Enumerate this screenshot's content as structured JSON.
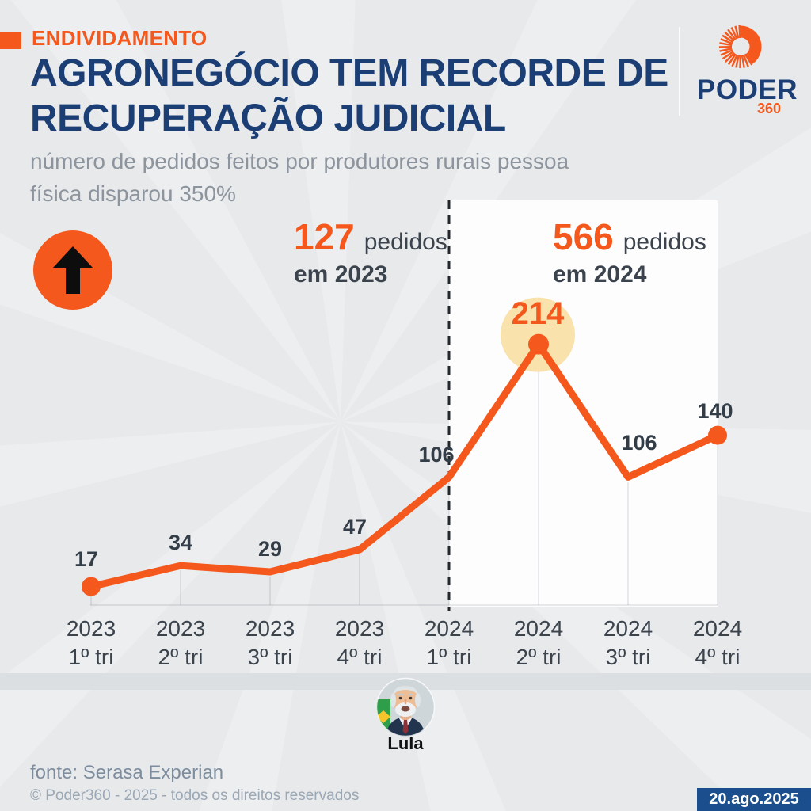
{
  "header": {
    "kicker": "ENDIVIDAMENTO",
    "title_line1": "AGRONEGÓCIO TEM RECORDE DE",
    "title_line2": "RECUPERAÇÃO JUDICIAL",
    "subtitle_line1": "número de pedidos feitos por produtores rurais pessoa",
    "subtitle_line2": "física disparou 350%"
  },
  "brand": {
    "name": "PODER",
    "suffix": "360"
  },
  "notes": {
    "y2023": {
      "value": "127",
      "unit": "pedidos",
      "period": "em 2023"
    },
    "y2024": {
      "value": "566",
      "unit": "pedidos",
      "period": "em 2024"
    }
  },
  "chart_data": {
    "type": "line",
    "title": "AGRONEGÓCIO TEM RECORDE DE RECUPERAÇÃO JUDICIAL",
    "subtitle": "número de pedidos feitos por produtores rurais pessoa física disparou 350%",
    "categories": [
      {
        "year": "2023",
        "quarter": "1º tri"
      },
      {
        "year": "2023",
        "quarter": "2º tri"
      },
      {
        "year": "2023",
        "quarter": "3º tri"
      },
      {
        "year": "2023",
        "quarter": "4º tri"
      },
      {
        "year": "2024",
        "quarter": "1º tri"
      },
      {
        "year": "2024",
        "quarter": "2º tri"
      },
      {
        "year": "2024",
        "quarter": "3º tri"
      },
      {
        "year": "2024",
        "quarter": "4º tri"
      }
    ],
    "values": [
      17,
      34,
      29,
      47,
      106,
      214,
      106,
      140
    ],
    "highlight": {
      "index": 5,
      "value": 214
    },
    "annotations": [
      "127 pedidos em 2023",
      "566 pedidos em 2024"
    ],
    "highlight_region": {
      "from": "2024 1º tri",
      "to": "2024 4º tri",
      "style": "white panel with dashed divider at 2024 1º tri"
    },
    "ylim": [
      0,
      240
    ],
    "grid": "vertical drop line per point",
    "legend": false
  },
  "avatar": {
    "label": "Lula"
  },
  "footer": {
    "source": "fonte: Serasa Experian",
    "copyright": "© Poder360 - 2025 - todos os direitos reservados",
    "date": "20.ago.2025"
  },
  "colors": {
    "accent": "#f4581c",
    "title_navy": "#1b3e75",
    "halo_yellow": "#f9e2ab",
    "label_dark": "#333d47",
    "axis_gray": "#3b434d",
    "subtitle_gray": "#8c949e",
    "badge_navy": "#1b4e8c",
    "background": "#e8e9eb",
    "panel_white": "#fdfdfe",
    "footer_gray": "#7d8d9d",
    "copyright_gray": "#9aa7b4"
  }
}
